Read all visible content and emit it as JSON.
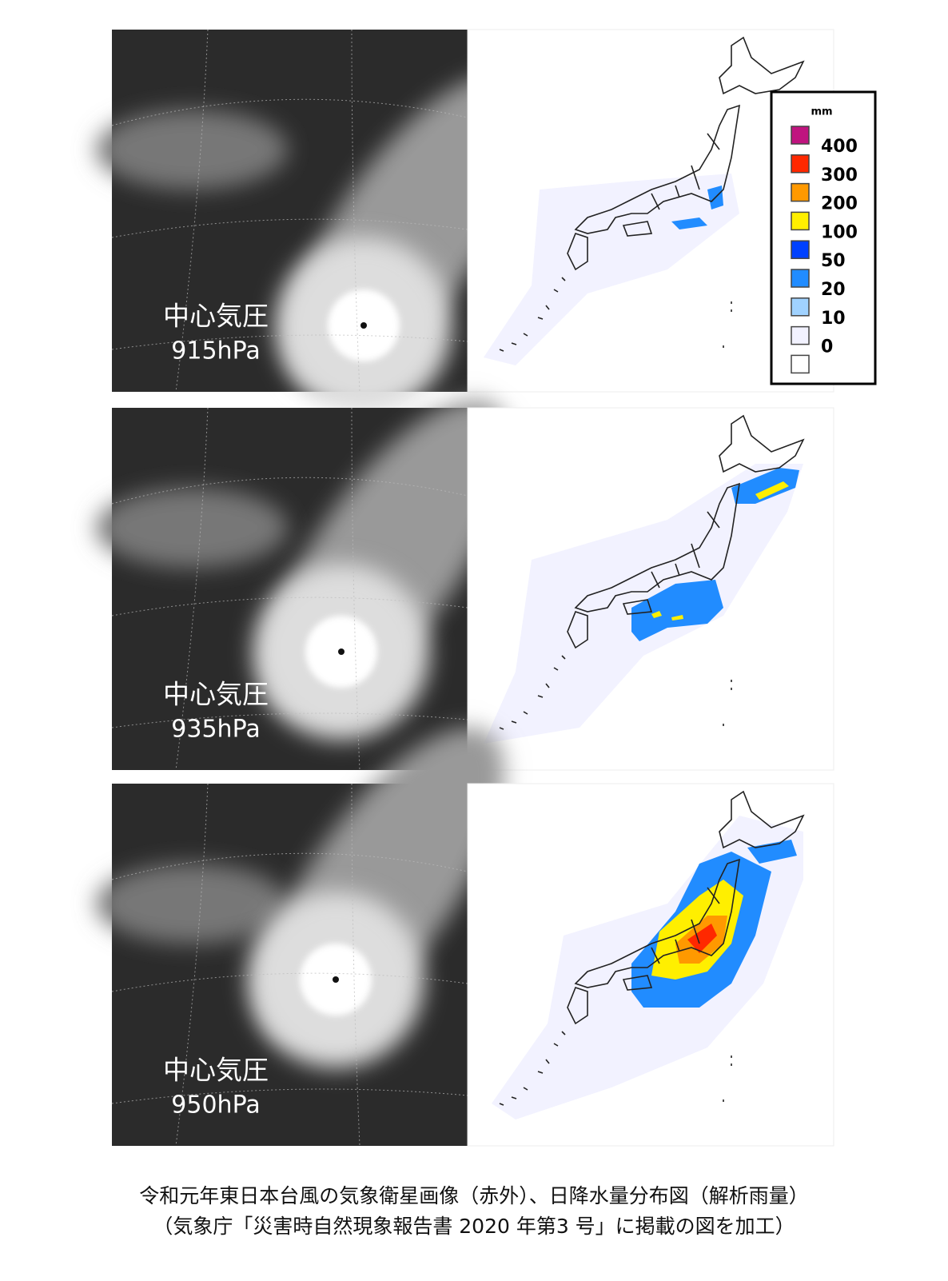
{
  "panels": [
    {
      "label": "中心気圧",
      "pressure": "915hPa"
    },
    {
      "label": "中心気圧",
      "pressure": "935hPa"
    },
    {
      "label": "中心気圧",
      "pressure": "950hPa"
    }
  ],
  "legend": {
    "unit": "mm",
    "labels": [
      "400",
      "300",
      "200",
      "100",
      "50",
      "20",
      "10",
      "0"
    ],
    "colors": [
      "#c0147f",
      "#ff2800",
      "#ff9900",
      "#ffef00",
      "#0041ff",
      "#218cff",
      "#a0d2ff",
      "#f2f2ff",
      "#ffffff"
    ]
  },
  "caption": [
    "令和元年東日本台風の気象衛星画像（赤外）、日降水量分布図（解析雨量）",
    "（気象庁「災害時自然現象報告書 2020 年第3 号」に掲載の図を加工）"
  ]
}
